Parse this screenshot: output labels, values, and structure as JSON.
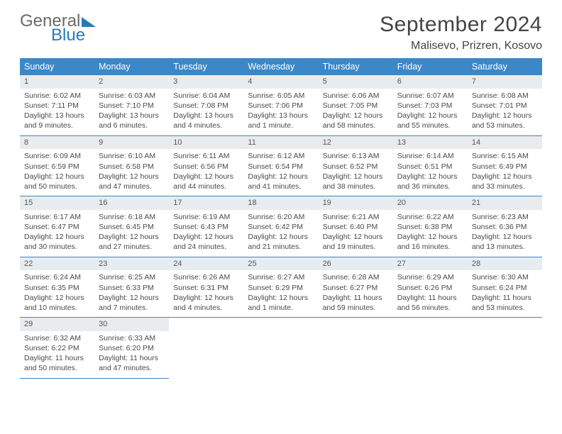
{
  "logo": {
    "word1": "General",
    "word2": "Blue"
  },
  "title": "September 2024",
  "location": "Malisevo, Prizren, Kosovo",
  "header_bg": "#3b87c8",
  "day_names": [
    "Sunday",
    "Monday",
    "Tuesday",
    "Wednesday",
    "Thursday",
    "Friday",
    "Saturday"
  ],
  "weeks": [
    [
      {
        "n": "1",
        "sr": "Sunrise: 6:02 AM",
        "ss": "Sunset: 7:11 PM",
        "d1": "Daylight: 13 hours",
        "d2": "and 9 minutes."
      },
      {
        "n": "2",
        "sr": "Sunrise: 6:03 AM",
        "ss": "Sunset: 7:10 PM",
        "d1": "Daylight: 13 hours",
        "d2": "and 6 minutes."
      },
      {
        "n": "3",
        "sr": "Sunrise: 6:04 AM",
        "ss": "Sunset: 7:08 PM",
        "d1": "Daylight: 13 hours",
        "d2": "and 4 minutes."
      },
      {
        "n": "4",
        "sr": "Sunrise: 6:05 AM",
        "ss": "Sunset: 7:06 PM",
        "d1": "Daylight: 13 hours",
        "d2": "and 1 minute."
      },
      {
        "n": "5",
        "sr": "Sunrise: 6:06 AM",
        "ss": "Sunset: 7:05 PM",
        "d1": "Daylight: 12 hours",
        "d2": "and 58 minutes."
      },
      {
        "n": "6",
        "sr": "Sunrise: 6:07 AM",
        "ss": "Sunset: 7:03 PM",
        "d1": "Daylight: 12 hours",
        "d2": "and 55 minutes."
      },
      {
        "n": "7",
        "sr": "Sunrise: 6:08 AM",
        "ss": "Sunset: 7:01 PM",
        "d1": "Daylight: 12 hours",
        "d2": "and 53 minutes."
      }
    ],
    [
      {
        "n": "8",
        "sr": "Sunrise: 6:09 AM",
        "ss": "Sunset: 6:59 PM",
        "d1": "Daylight: 12 hours",
        "d2": "and 50 minutes."
      },
      {
        "n": "9",
        "sr": "Sunrise: 6:10 AM",
        "ss": "Sunset: 6:58 PM",
        "d1": "Daylight: 12 hours",
        "d2": "and 47 minutes."
      },
      {
        "n": "10",
        "sr": "Sunrise: 6:11 AM",
        "ss": "Sunset: 6:56 PM",
        "d1": "Daylight: 12 hours",
        "d2": "and 44 minutes."
      },
      {
        "n": "11",
        "sr": "Sunrise: 6:12 AM",
        "ss": "Sunset: 6:54 PM",
        "d1": "Daylight: 12 hours",
        "d2": "and 41 minutes."
      },
      {
        "n": "12",
        "sr": "Sunrise: 6:13 AM",
        "ss": "Sunset: 6:52 PM",
        "d1": "Daylight: 12 hours",
        "d2": "and 38 minutes."
      },
      {
        "n": "13",
        "sr": "Sunrise: 6:14 AM",
        "ss": "Sunset: 6:51 PM",
        "d1": "Daylight: 12 hours",
        "d2": "and 36 minutes."
      },
      {
        "n": "14",
        "sr": "Sunrise: 6:15 AM",
        "ss": "Sunset: 6:49 PM",
        "d1": "Daylight: 12 hours",
        "d2": "and 33 minutes."
      }
    ],
    [
      {
        "n": "15",
        "sr": "Sunrise: 6:17 AM",
        "ss": "Sunset: 6:47 PM",
        "d1": "Daylight: 12 hours",
        "d2": "and 30 minutes."
      },
      {
        "n": "16",
        "sr": "Sunrise: 6:18 AM",
        "ss": "Sunset: 6:45 PM",
        "d1": "Daylight: 12 hours",
        "d2": "and 27 minutes."
      },
      {
        "n": "17",
        "sr": "Sunrise: 6:19 AM",
        "ss": "Sunset: 6:43 PM",
        "d1": "Daylight: 12 hours",
        "d2": "and 24 minutes."
      },
      {
        "n": "18",
        "sr": "Sunrise: 6:20 AM",
        "ss": "Sunset: 6:42 PM",
        "d1": "Daylight: 12 hours",
        "d2": "and 21 minutes."
      },
      {
        "n": "19",
        "sr": "Sunrise: 6:21 AM",
        "ss": "Sunset: 6:40 PM",
        "d1": "Daylight: 12 hours",
        "d2": "and 19 minutes."
      },
      {
        "n": "20",
        "sr": "Sunrise: 6:22 AM",
        "ss": "Sunset: 6:38 PM",
        "d1": "Daylight: 12 hours",
        "d2": "and 16 minutes."
      },
      {
        "n": "21",
        "sr": "Sunrise: 6:23 AM",
        "ss": "Sunset: 6:36 PM",
        "d1": "Daylight: 12 hours",
        "d2": "and 13 minutes."
      }
    ],
    [
      {
        "n": "22",
        "sr": "Sunrise: 6:24 AM",
        "ss": "Sunset: 6:35 PM",
        "d1": "Daylight: 12 hours",
        "d2": "and 10 minutes."
      },
      {
        "n": "23",
        "sr": "Sunrise: 6:25 AM",
        "ss": "Sunset: 6:33 PM",
        "d1": "Daylight: 12 hours",
        "d2": "and 7 minutes."
      },
      {
        "n": "24",
        "sr": "Sunrise: 6:26 AM",
        "ss": "Sunset: 6:31 PM",
        "d1": "Daylight: 12 hours",
        "d2": "and 4 minutes."
      },
      {
        "n": "25",
        "sr": "Sunrise: 6:27 AM",
        "ss": "Sunset: 6:29 PM",
        "d1": "Daylight: 12 hours",
        "d2": "and 1 minute."
      },
      {
        "n": "26",
        "sr": "Sunrise: 6:28 AM",
        "ss": "Sunset: 6:27 PM",
        "d1": "Daylight: 11 hours",
        "d2": "and 59 minutes."
      },
      {
        "n": "27",
        "sr": "Sunrise: 6:29 AM",
        "ss": "Sunset: 6:26 PM",
        "d1": "Daylight: 11 hours",
        "d2": "and 56 minutes."
      },
      {
        "n": "28",
        "sr": "Sunrise: 6:30 AM",
        "ss": "Sunset: 6:24 PM",
        "d1": "Daylight: 11 hours",
        "d2": "and 53 minutes."
      }
    ],
    [
      {
        "n": "29",
        "sr": "Sunrise: 6:32 AM",
        "ss": "Sunset: 6:22 PM",
        "d1": "Daylight: 11 hours",
        "d2": "and 50 minutes."
      },
      {
        "n": "30",
        "sr": "Sunrise: 6:33 AM",
        "ss": "Sunset: 6:20 PM",
        "d1": "Daylight: 11 hours",
        "d2": "and 47 minutes."
      },
      null,
      null,
      null,
      null,
      null
    ]
  ]
}
